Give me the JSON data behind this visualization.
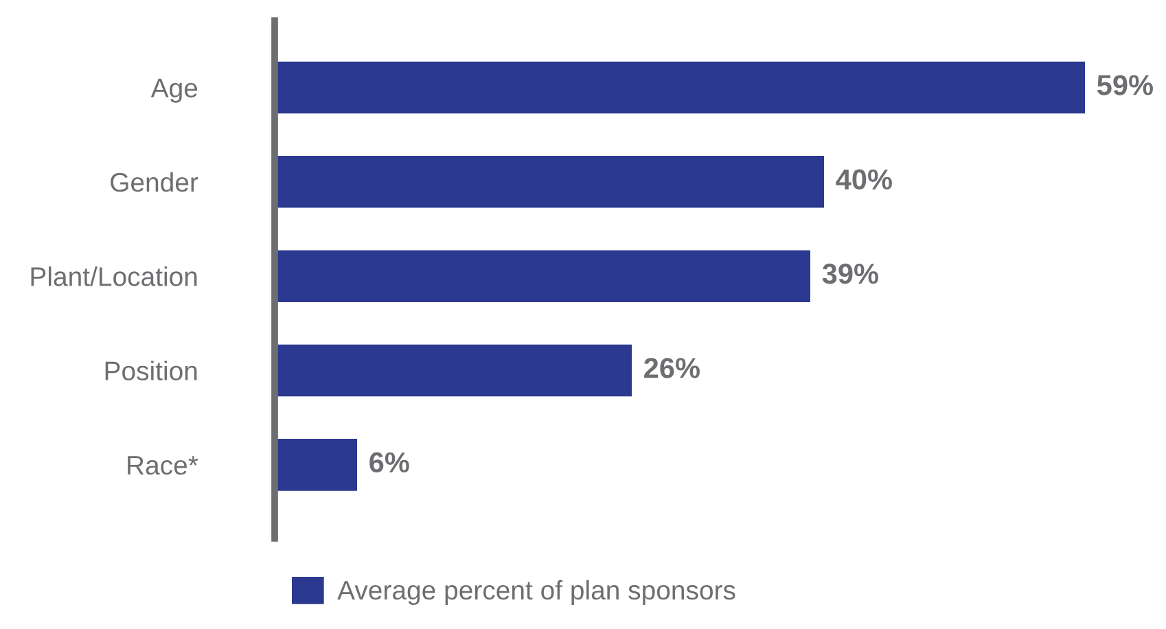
{
  "chart_data": {
    "type": "bar",
    "orientation": "horizontal",
    "categories": [
      "Age",
      "Gender",
      "Plant/Location",
      "Position",
      "Race*"
    ],
    "series": [
      {
        "name": "Average percent of plan sponsors",
        "color": "#2b3990",
        "values": [
          59,
          40,
          39,
          26,
          6
        ],
        "value_labels": [
          "59%",
          "40%",
          "39%",
          "26%",
          "6%"
        ]
      }
    ],
    "legend": "bottom left",
    "grid": false,
    "tick_labels": "y"
  }
}
